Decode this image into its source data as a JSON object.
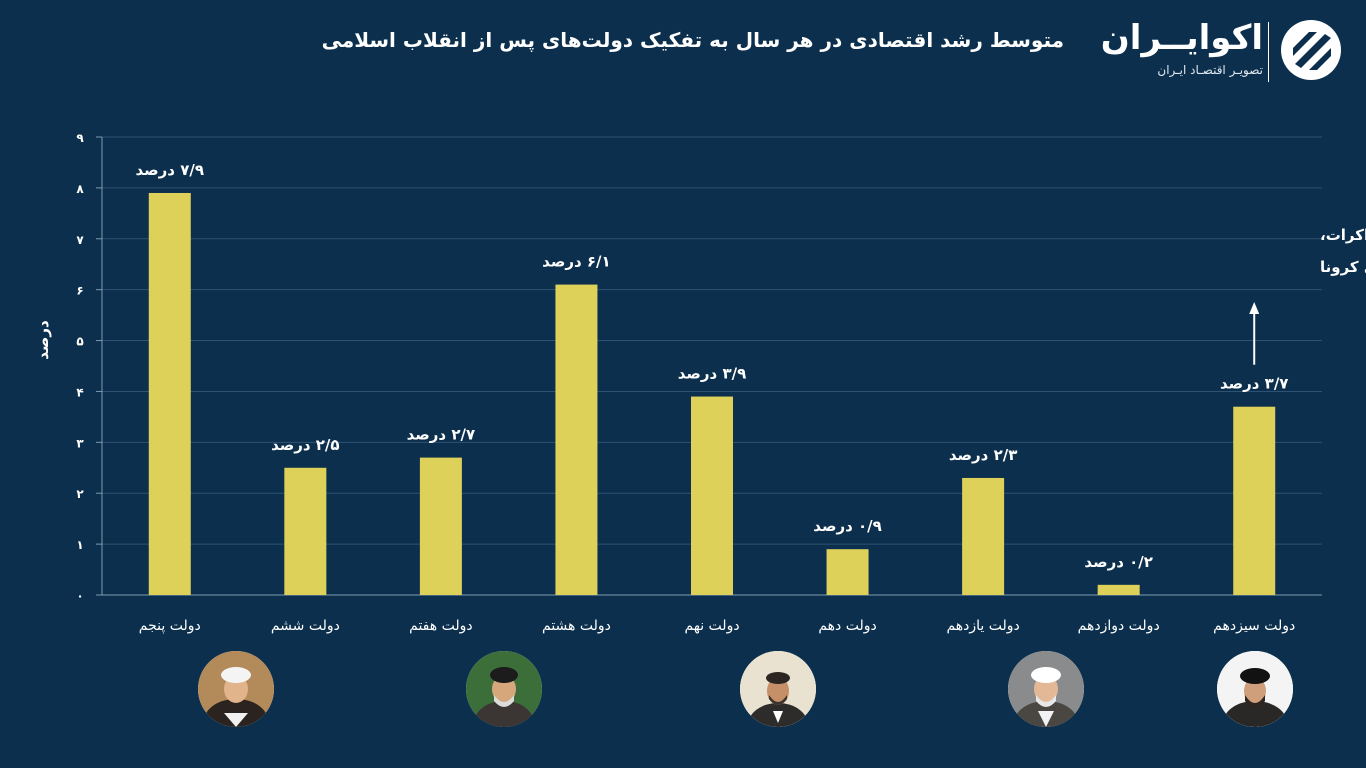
{
  "header": {
    "title": "متوسط رشد اقتصادی در هر سال به تفکیک دولت‌های پس از انقلاب اسلامی",
    "brand_name": "اکوایــران",
    "brand_subtitle": "تصویـر اقتصـاد ایـران"
  },
  "chart_data": {
    "type": "bar",
    "title": "متوسط رشد اقتصادی در هر سال به تفکیک دولت‌های پس از انقلاب اسلامی",
    "ylabel": "درصد",
    "ylim": [
      0,
      9
    ],
    "yticks": [
      "۰",
      "۱",
      "۲",
      "۳",
      "۴",
      "۵",
      "۶",
      "۷",
      "۸",
      "۹"
    ],
    "grid": true,
    "categories": [
      "دولت پنجم",
      "دولت ششم",
      "دولت هفتم",
      "دولت هشتم",
      "دولت نهم",
      "دولت دهم",
      "دولت یازدهم",
      "دولت دوازدهم",
      "دولت سیزدهم"
    ],
    "values": [
      7.9,
      2.5,
      2.7,
      6.1,
      3.9,
      0.9,
      2.3,
      0.2,
      3.7
    ],
    "value_labels": [
      "۷/۹ درصد",
      "۲/۵ درصد",
      "۲/۷ درصد",
      "۶/۱ درصد",
      "۳/۹ درصد",
      "۰/۹ درصد",
      "۲/۳ درصد",
      "۰/۲ درصد",
      "۳/۷ درصد"
    ],
    "annotation": {
      "lines": [
        "آغاز دوباره مذاکرات،",
        "پایان پاندمی کرونا"
      ],
      "category": "دولت سیزدهم"
    },
    "portraits_under": [
      "دولت پنجم",
      "دولت هفتم",
      "دولت نهم",
      "دولت یازدهم",
      "دولت سیزدهم"
    ]
  },
  "colors": {
    "background": "#0b2f4c",
    "bar": "#ddd15a",
    "text": "#ffffff",
    "grid": "#2d5273"
  }
}
